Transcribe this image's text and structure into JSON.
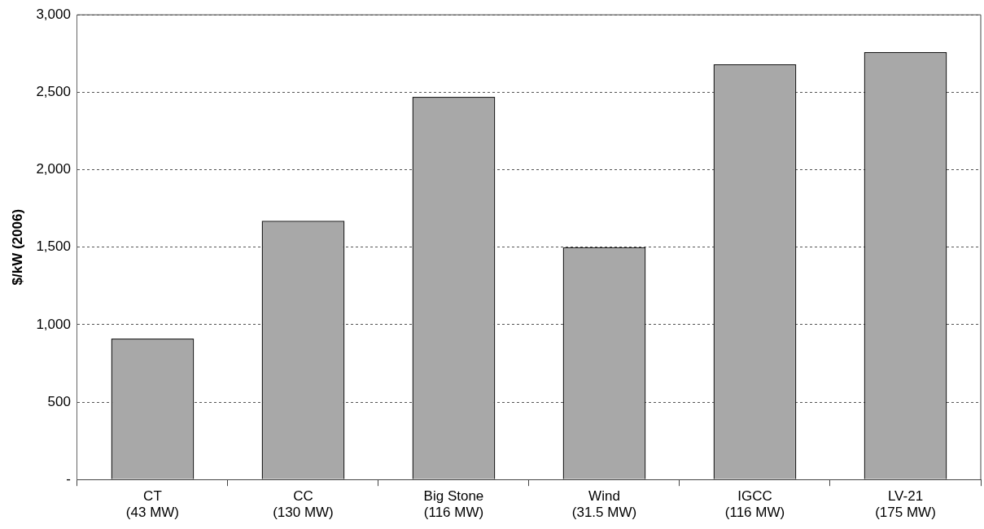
{
  "chart_data": {
    "type": "bar",
    "ylabel": "$/kW (2006)",
    "categories": [
      "CT\n(43 MW)",
      "CC\n(130 MW)",
      "Big Stone\n(116 MW)",
      "Wind\n(31.5 MW)",
      "IGCC\n(116 MW)",
      "LV-21\n(175 MW)"
    ],
    "values": [
      910,
      1670,
      2470,
      1500,
      2680,
      2760
    ],
    "color": "#a8a8a8",
    "ylim": [
      0,
      3000
    ],
    "yticks": [
      {
        "value": 0,
        "label": "-"
      },
      {
        "value": 500,
        "label": "500"
      },
      {
        "value": 1000,
        "label": "1,000"
      },
      {
        "value": 1500,
        "label": "1,500"
      },
      {
        "value": 2000,
        "label": "2,000"
      },
      {
        "value": 2500,
        "label": "2,500"
      },
      {
        "value": 3000,
        "label": "3,000"
      }
    ],
    "grid": "y",
    "legend": false
  }
}
